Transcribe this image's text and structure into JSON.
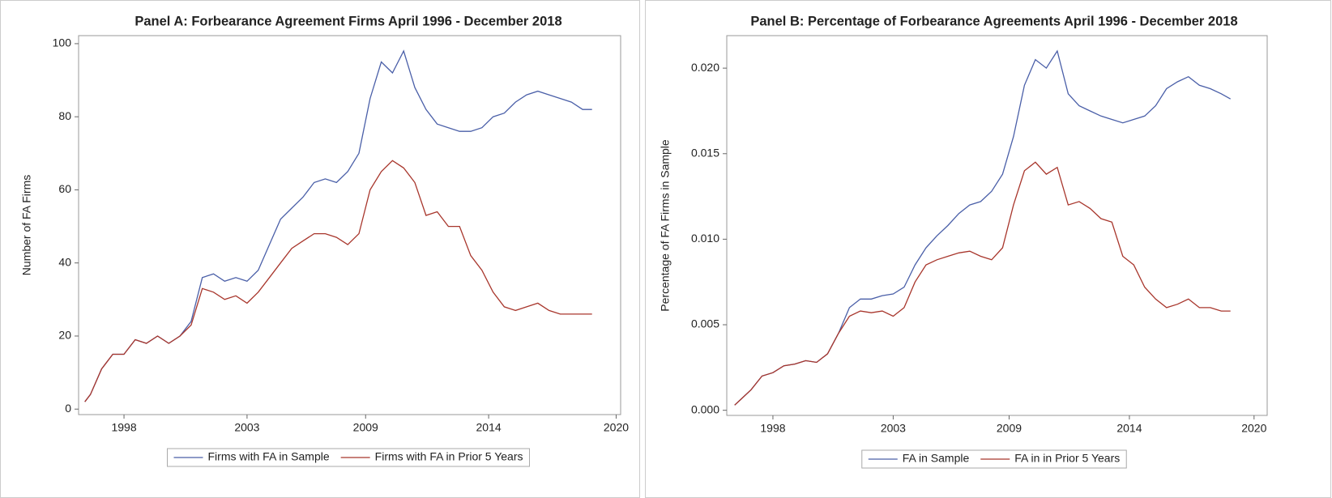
{
  "chart_data": [
    {
      "type": "line",
      "title": "Panel A: Forbearance Agreement Firms April 1996 - December 2018",
      "y_label": "Number of FA Firms",
      "x": [
        1996.25,
        1996.5,
        1997,
        1997.5,
        1998,
        1998.5,
        1999,
        1999.5,
        2000,
        2000.5,
        2001,
        2001.5,
        2002,
        2002.5,
        2003,
        2003.5,
        2004,
        2004.5,
        2005,
        2005.5,
        2006,
        2006.5,
        2007,
        2007.5,
        2008,
        2008.5,
        2009,
        2009.5,
        2010,
        2010.5,
        2011,
        2011.5,
        2012,
        2012.5,
        2013,
        2013.5,
        2014,
        2014.5,
        2015,
        2015.5,
        2016,
        2016.5,
        2017,
        2017.5,
        2018,
        2018.5,
        2018.92
      ],
      "series": [
        {
          "name": "Firms with FA in Sample",
          "color": "#4a5fa8",
          "values": [
            2,
            4,
            11,
            15,
            15,
            19,
            18,
            20,
            18,
            20,
            24,
            36,
            37,
            35,
            36,
            35,
            38,
            45,
            52,
            55,
            58,
            62,
            63,
            62,
            65,
            70,
            85,
            95,
            92,
            98,
            88,
            82,
            78,
            77,
            76,
            76,
            77,
            80,
            81,
            84,
            86,
            87,
            86,
            85,
            84,
            82,
            82
          ]
        },
        {
          "name": "Firms with FA in Prior 5 Years",
          "color": "#a8362c",
          "values": [
            2,
            4,
            11,
            15,
            15,
            19,
            18,
            20,
            18,
            20,
            23,
            33,
            32,
            30,
            31,
            29,
            32,
            36,
            40,
            44,
            46,
            48,
            48,
            47,
            45,
            48,
            60,
            65,
            68,
            66,
            62,
            53,
            54,
            50,
            50,
            42,
            38,
            32,
            28,
            27,
            28,
            29,
            27,
            26,
            26,
            26,
            26
          ]
        }
      ],
      "xlim": [
        1995.97,
        2020.2
      ],
      "xticks": [
        {
          "value": 1998,
          "label": "1998"
        },
        {
          "value": 2003.5,
          "label": "2003"
        },
        {
          "value": 2008.8,
          "label": "2009"
        },
        {
          "value": 2014.3,
          "label": "2014"
        },
        {
          "value": 2020,
          "label": "2020"
        }
      ],
      "ylim": [
        -1.5,
        102.2
      ],
      "yticks": [
        0,
        20,
        40,
        60,
        80,
        100
      ]
    },
    {
      "type": "line",
      "title": "Panel B: Percentage of Forbearance Agreements April 1996 - December 2018",
      "y_label": "Percentage of FA Firms in Sample",
      "x": [
        1996.25,
        1996.5,
        1997,
        1997.5,
        1998,
        1998.5,
        1999,
        1999.5,
        2000,
        2000.5,
        2001,
        2001.5,
        2002,
        2002.5,
        2003,
        2003.5,
        2004,
        2004.5,
        2005,
        2005.5,
        2006,
        2006.5,
        2007,
        2007.5,
        2008,
        2008.5,
        2009,
        2009.5,
        2010,
        2010.5,
        2011,
        2011.5,
        2012,
        2012.5,
        2013,
        2013.5,
        2014,
        2014.5,
        2015,
        2015.5,
        2016,
        2016.5,
        2017,
        2017.5,
        2018,
        2018.5,
        2018.92
      ],
      "series": [
        {
          "name": "FA in Sample",
          "color": "#4a5fa8",
          "values": [
            0.0003,
            0.0006,
            0.0012,
            0.002,
            0.0022,
            0.0026,
            0.0027,
            0.0029,
            0.0028,
            0.0033,
            0.0045,
            0.006,
            0.0065,
            0.0065,
            0.0067,
            0.0068,
            0.0072,
            0.0085,
            0.0095,
            0.0102,
            0.0108,
            0.0115,
            0.012,
            0.0122,
            0.0128,
            0.0138,
            0.016,
            0.019,
            0.0205,
            0.02,
            0.021,
            0.0185,
            0.0178,
            0.0175,
            0.0172,
            0.017,
            0.0168,
            0.017,
            0.0172,
            0.0178,
            0.0188,
            0.0192,
            0.0195,
            0.019,
            0.0188,
            0.0185,
            0.0182
          ]
        },
        {
          "name": "FA in in Prior 5 Years",
          "color": "#a8362c",
          "values": [
            0.0003,
            0.0006,
            0.0012,
            0.002,
            0.0022,
            0.0026,
            0.0027,
            0.0029,
            0.0028,
            0.0033,
            0.0045,
            0.0055,
            0.0058,
            0.0057,
            0.0058,
            0.0055,
            0.006,
            0.0075,
            0.0085,
            0.0088,
            0.009,
            0.0092,
            0.0093,
            0.009,
            0.0088,
            0.0095,
            0.012,
            0.014,
            0.0145,
            0.0138,
            0.0142,
            0.012,
            0.0122,
            0.0118,
            0.0112,
            0.011,
            0.009,
            0.0085,
            0.0072,
            0.0065,
            0.006,
            0.0062,
            0.0065,
            0.006,
            0.006,
            0.0058,
            0.0058
          ]
        }
      ],
      "xlim": [
        1995.89,
        2020.6
      ],
      "xticks": [
        {
          "value": 1998,
          "label": "1998"
        },
        {
          "value": 2003.5,
          "label": "2003"
        },
        {
          "value": 2008.8,
          "label": "2009"
        },
        {
          "value": 2014.3,
          "label": "2014"
        },
        {
          "value": 2020,
          "label": "2020"
        }
      ],
      "ylim": [
        -0.0003,
        0.0219
      ],
      "yticks": [
        {
          "value": 0,
          "label": "0.000"
        },
        {
          "value": 0.005,
          "label": "0.005"
        },
        {
          "value": 0.01,
          "label": "0.010"
        },
        {
          "value": 0.015,
          "label": "0.015"
        },
        {
          "value": 0.02,
          "label": "0.020"
        }
      ]
    }
  ]
}
